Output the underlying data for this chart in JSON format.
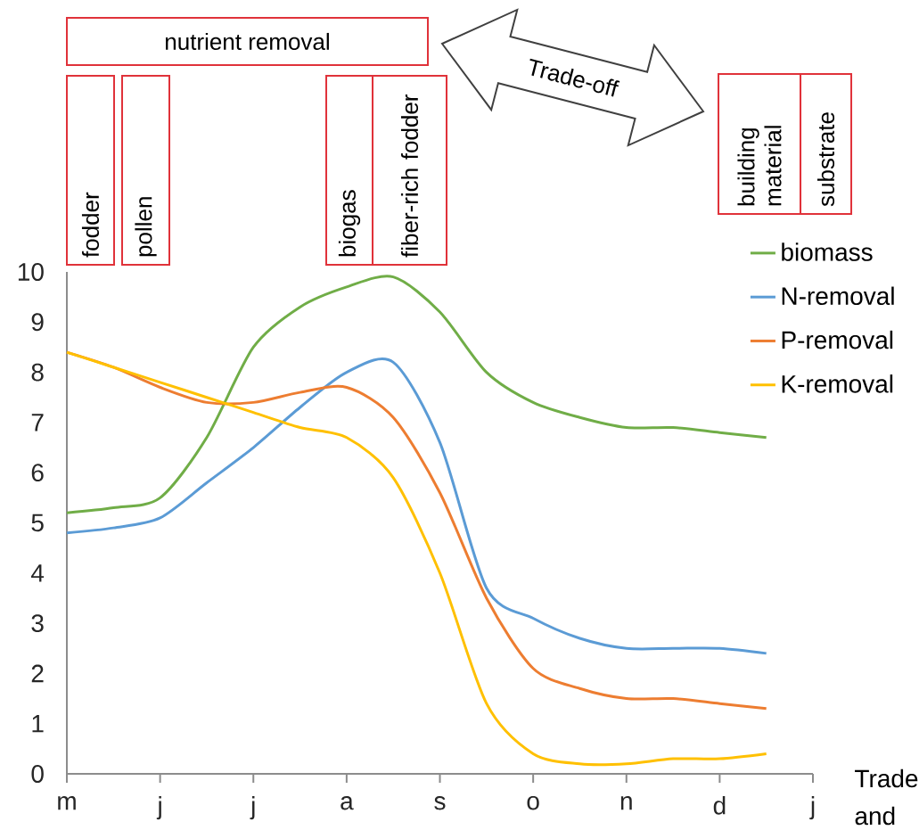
{
  "chart_data": {
    "type": "line",
    "ylim": [
      0,
      10
    ],
    "categories": [
      "m",
      null,
      "j",
      null,
      "j",
      null,
      "a",
      null,
      "s",
      null,
      "o",
      null,
      "n",
      null,
      "d",
      null,
      "j"
    ],
    "yticks": [
      0,
      1,
      2,
      3,
      4,
      5,
      6,
      7,
      8,
      9,
      10
    ],
    "series": [
      {
        "name": "biomass",
        "color": "#70ad47",
        "values": [
          5.2,
          5.3,
          5.5,
          6.7,
          8.5,
          9.3,
          9.7,
          9.9,
          9.2,
          8.0,
          7.4,
          7.1,
          6.9,
          6.9,
          6.8,
          6.7,
          null
        ]
      },
      {
        "name": "N-removal",
        "color": "#5b9bd5",
        "values": [
          4.8,
          4.9,
          5.1,
          5.8,
          6.5,
          7.3,
          8.0,
          8.2,
          6.6,
          3.7,
          3.1,
          2.7,
          2.5,
          2.5,
          2.5,
          2.4,
          null
        ]
      },
      {
        "name": "P-removal",
        "color": "#ed7d31",
        "values": [
          8.4,
          8.1,
          7.7,
          7.4,
          7.4,
          7.6,
          7.7,
          7.1,
          5.6,
          3.5,
          2.1,
          1.7,
          1.5,
          1.5,
          1.4,
          1.3,
          null
        ]
      },
      {
        "name": "K-removal",
        "color": "#ffc000",
        "values": [
          8.4,
          8.1,
          7.8,
          7.5,
          7.2,
          6.9,
          6.7,
          5.9,
          4.0,
          1.4,
          0.4,
          0.2,
          0.2,
          0.3,
          0.3,
          0.4,
          null
        ]
      }
    ],
    "legend": "top right",
    "marker": "none",
    "line_style": "solid",
    "annotations": [
      "nutrient removal",
      "fodder",
      "pollen",
      "biogas",
      "fiber-rich fodder",
      "Trade-off",
      "building material",
      "substrate",
      "Trade",
      "and"
    ]
  }
}
